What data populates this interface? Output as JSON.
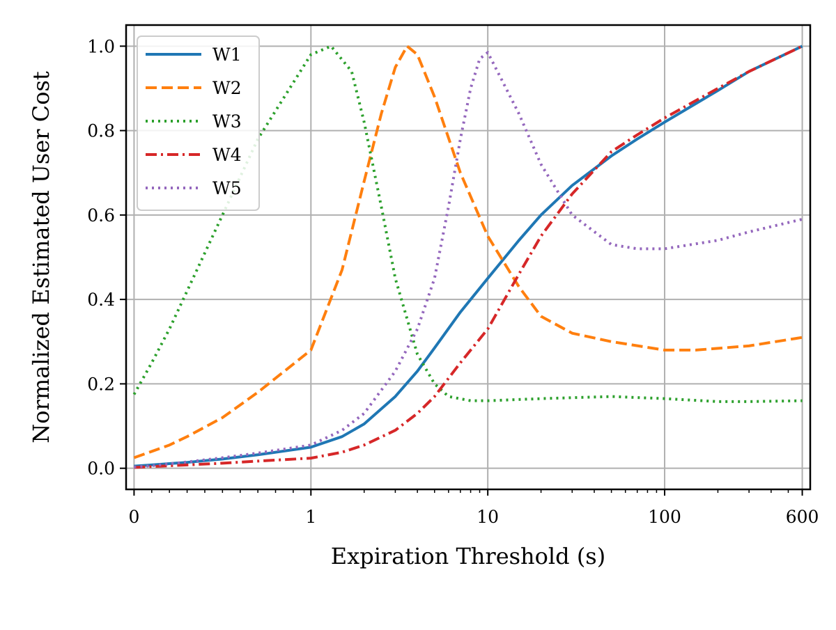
{
  "chart_data": {
    "type": "line",
    "title": "",
    "xlabel": "Expiration Threshold (s)",
    "ylabel": "Normalized Estimated User Cost",
    "x_scale": "symlog",
    "xlim": [
      0,
      600
    ],
    "ylim": [
      -0.05,
      1.05
    ],
    "x_ticks": [
      {
        "value": 0,
        "label": "0"
      },
      {
        "value": 1,
        "label": "1"
      },
      {
        "value": 10,
        "label": "10"
      },
      {
        "value": 100,
        "label": "100"
      },
      {
        "value": 600,
        "label": "600"
      }
    ],
    "y_ticks": [
      {
        "value": 0.0,
        "label": "0.0"
      },
      {
        "value": 0.2,
        "label": "0.2"
      },
      {
        "value": 0.4,
        "label": "0.4"
      },
      {
        "value": 0.6,
        "label": "0.6"
      },
      {
        "value": 0.8,
        "label": "0.8"
      },
      {
        "value": 1.0,
        "label": "1.0"
      }
    ],
    "grid": true,
    "legend_position": "top-left",
    "series": [
      {
        "name": "W1",
        "color": "#1f77b4",
        "style": "solid",
        "x": [
          0,
          0.1,
          0.2,
          0.3,
          0.5,
          0.7,
          1,
          1.5,
          2,
          3,
          4,
          5,
          7,
          10,
          15,
          20,
          30,
          50,
          70,
          100,
          200,
          300,
          600
        ],
        "y": [
          0.005,
          0.008,
          0.011,
          0.014,
          0.022,
          0.032,
          0.05,
          0.075,
          0.105,
          0.17,
          0.23,
          0.285,
          0.37,
          0.45,
          0.54,
          0.6,
          0.67,
          0.74,
          0.78,
          0.82,
          0.895,
          0.94,
          1.0
        ]
      },
      {
        "name": "W2",
        "color": "#ff7f0e",
        "style": "dashed",
        "x": [
          0,
          0.1,
          0.2,
          0.3,
          0.5,
          0.7,
          1,
          1.5,
          2,
          2.5,
          3,
          3.5,
          4,
          5,
          7,
          10,
          15,
          20,
          30,
          50,
          100,
          150,
          300,
          600
        ],
        "y": [
          0.025,
          0.04,
          0.055,
          0.075,
          0.12,
          0.18,
          0.28,
          0.47,
          0.68,
          0.84,
          0.95,
          1.0,
          0.98,
          0.88,
          0.7,
          0.55,
          0.43,
          0.36,
          0.32,
          0.3,
          0.28,
          0.28,
          0.29,
          0.31
        ]
      },
      {
        "name": "W3",
        "color": "#2ca02c",
        "style": "dotted",
        "x": [
          0,
          0.1,
          0.2,
          0.3,
          0.5,
          0.7,
          1,
          1.3,
          1.7,
          2,
          2.5,
          3,
          4,
          5,
          6,
          8,
          10,
          20,
          50,
          100,
          200,
          300,
          600
        ],
        "y": [
          0.175,
          0.25,
          0.33,
          0.42,
          0.6,
          0.78,
          0.98,
          1.0,
          0.94,
          0.82,
          0.62,
          0.45,
          0.27,
          0.2,
          0.17,
          0.16,
          0.16,
          0.165,
          0.17,
          0.165,
          0.158,
          0.158,
          0.16
        ]
      },
      {
        "name": "W4",
        "color": "#d62728",
        "style": "dashdot",
        "x": [
          0,
          0.1,
          0.3,
          0.5,
          0.7,
          1,
          1.5,
          2,
          3,
          4,
          5,
          7,
          10,
          15,
          20,
          30,
          50,
          70,
          100,
          200,
          300,
          600
        ],
        "y": [
          0.002,
          0.004,
          0.008,
          0.012,
          0.017,
          0.024,
          0.038,
          0.055,
          0.09,
          0.13,
          0.17,
          0.25,
          0.33,
          0.46,
          0.55,
          0.65,
          0.75,
          0.79,
          0.83,
          0.9,
          0.94,
          1.0
        ]
      },
      {
        "name": "W5",
        "color": "#9467bd",
        "style": "dotted",
        "x": [
          0,
          0.1,
          0.3,
          0.5,
          0.7,
          1,
          1.5,
          2,
          3,
          4,
          5,
          6,
          7,
          8,
          9,
          10,
          12,
          15,
          20,
          30,
          50,
          70,
          100,
          200,
          300,
          600
        ],
        "y": [
          0.003,
          0.006,
          0.015,
          0.025,
          0.036,
          0.055,
          0.09,
          0.13,
          0.23,
          0.33,
          0.45,
          0.62,
          0.78,
          0.9,
          0.97,
          0.985,
          0.92,
          0.84,
          0.72,
          0.6,
          0.53,
          0.52,
          0.52,
          0.54,
          0.56,
          0.59
        ]
      }
    ]
  }
}
